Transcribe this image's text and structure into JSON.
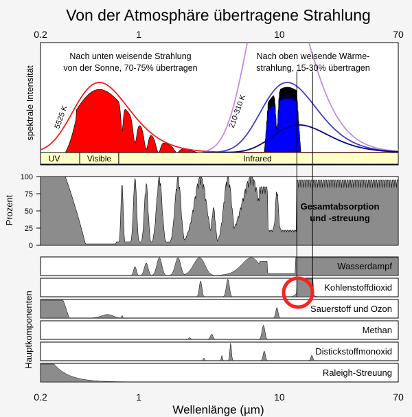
{
  "title": "Von der Atmosphäre übertragene Strahlung",
  "colors": {
    "sun_fill": "#ff0000",
    "earth_fill": "#0000ff",
    "curve_red": "#ff1a1a",
    "curve_violet": "#c48be8",
    "curve_blue1": "#3c3cd8",
    "curve_blue2": "#00008b",
    "band_fill": "#ffffc8",
    "gray_fill": "#8c8c8c",
    "circle": "#ff2020"
  },
  "chart_data": {
    "type": "area",
    "x_scale": "log",
    "xlim": [
      0.2,
      70
    ],
    "x_ticks": [
      "0.2",
      "1",
      "10",
      "70"
    ],
    "xlabel": "Wellenlänge (µm)",
    "top_panel": {
      "ylabel": "spektrale Intensität",
      "sun_label": "Nach unten weisende Strahlung\nvon der Sonne, 70-75% übertragen",
      "earth_label": "Nach oben weisende Wärme-\nstrahlung, 15-30% übertragen",
      "sun_temp": "5525 K",
      "earth_temp": "210-310 K",
      "bands": [
        {
          "name": "UV",
          "from": 0.2,
          "to": 0.38
        },
        {
          "name": "Visible",
          "from": 0.38,
          "to": 0.72
        },
        {
          "name": "Infrared",
          "from": 0.72,
          "to": 70
        }
      ]
    },
    "absorption_panel": {
      "ylabel": "Prozent",
      "y_ticks": [
        "100",
        "75",
        "50",
        "25",
        "0"
      ],
      "ylim": [
        0,
        100
      ],
      "label": "Gesamtabsorption\nund -streuung"
    },
    "components_panel": {
      "ylabel": "Hauptkomponenten",
      "components": [
        "Wasserdampf",
        "Kohlenstoffdioxid",
        "Sauerstoff und Ozon",
        "Methan",
        "Distickstoffmonoxid",
        "Raleigh-Streuung"
      ]
    }
  }
}
